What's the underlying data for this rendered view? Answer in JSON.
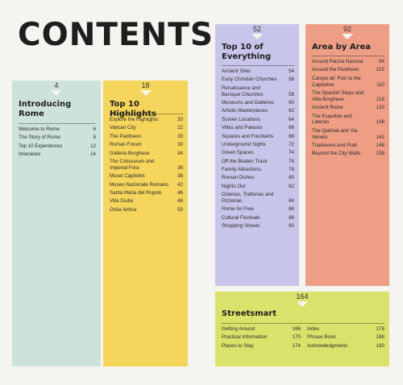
{
  "title": "CONTENTS",
  "sections": {
    "intro": {
      "page": "4",
      "heading": "Introducing Rome",
      "color": "#cde3d9",
      "items": [
        {
          "label": "Welcome to Rome",
          "page": "6"
        },
        {
          "label": "The Story of Rome",
          "page": "8"
        },
        {
          "label": "Top 10 Experiences",
          "page": "12"
        },
        {
          "label": "Itineraries",
          "page": "14"
        }
      ]
    },
    "highlights": {
      "page": "18",
      "heading": "Top 10 Highlights",
      "color": "#f6d55c",
      "items": [
        {
          "label": "Explore the Highlights",
          "page": "20"
        },
        {
          "label": "Vatican City",
          "page": "22"
        },
        {
          "label": "The Pantheon",
          "page": "28"
        },
        {
          "label": "Roman Forum",
          "page": "30"
        },
        {
          "label": "Galleria Borghese",
          "page": "34"
        },
        {
          "label": "The Colosseum and Imperial Fora",
          "page": "36"
        },
        {
          "label": "Musei Capitolini",
          "page": "38"
        },
        {
          "label": "Museo Nazionale Romano",
          "page": "42"
        },
        {
          "label": "Santa Maria del Popolo",
          "page": "46"
        },
        {
          "label": "Villa Giulia",
          "page": "48"
        },
        {
          "label": "Ostia Antica",
          "page": "50"
        }
      ]
    },
    "top10": {
      "page": "52",
      "heading": "Top 10 of Everything",
      "color": "#c8c5ea",
      "items": [
        {
          "label": "Ancient Sites",
          "page": "54"
        },
        {
          "label": "Early Christian Churches",
          "page": "56"
        },
        {
          "label": "Renaissance and Baroque Churches",
          "page": "58"
        },
        {
          "label": "Museums and Galleries",
          "page": "60"
        },
        {
          "label": "Artistic Masterpieces",
          "page": "62"
        },
        {
          "label": "Screen Locations",
          "page": "64"
        },
        {
          "label": "Villas and Palaces",
          "page": "66"
        },
        {
          "label": "Squares and Fountains",
          "page": "68"
        },
        {
          "label": "Underground Sights",
          "page": "72"
        },
        {
          "label": "Green Spaces",
          "page": "74"
        },
        {
          "label": "Off the Beaten Track",
          "page": "76"
        },
        {
          "label": "Family Attractions",
          "page": "78"
        },
        {
          "label": "Roman Dishes",
          "page": "80"
        },
        {
          "label": "Nights Out",
          "page": "82"
        },
        {
          "label": "Osterias, Trattorias and Pizzerias",
          "page": "84"
        },
        {
          "label": "Rome for Free",
          "page": "86"
        },
        {
          "label": "Cultural Festivals",
          "page": "88"
        },
        {
          "label": "Shopping Streets",
          "page": "90"
        }
      ]
    },
    "area": {
      "page": "92",
      "heading": "Area by Area",
      "color": "#ef9e86",
      "items": [
        {
          "label": "Around Piazza Navona",
          "page": "94"
        },
        {
          "label": "Around the Pantheon",
          "page": "102"
        },
        {
          "label": "Campo de' Fiori to the Capitoline",
          "page": "110"
        },
        {
          "label": "The Spanish Steps and Villa Borghese",
          "page": "118"
        },
        {
          "label": "Ancient Rome",
          "page": "130"
        },
        {
          "label": "The Esquiline and Lateran",
          "page": "136"
        },
        {
          "label": "The Quirinal and Via Veneto",
          "page": "142"
        },
        {
          "label": "Trastevere and Prati",
          "page": "148"
        },
        {
          "label": "Beyond the City Walls",
          "page": "158"
        }
      ]
    },
    "streetsmart": {
      "page": "164",
      "heading": "Streetsmart",
      "color": "#dbe26b",
      "items_left": [
        {
          "label": "Getting Around",
          "page": "166"
        },
        {
          "label": "Practical Information",
          "page": "170"
        },
        {
          "label": "Places to Stay",
          "page": "174"
        }
      ],
      "items_right": [
        {
          "label": "Index",
          "page": "178"
        },
        {
          "label": "Phrase Book",
          "page": "188"
        },
        {
          "label": "Acknowledgments",
          "page": "190"
        }
      ]
    }
  }
}
